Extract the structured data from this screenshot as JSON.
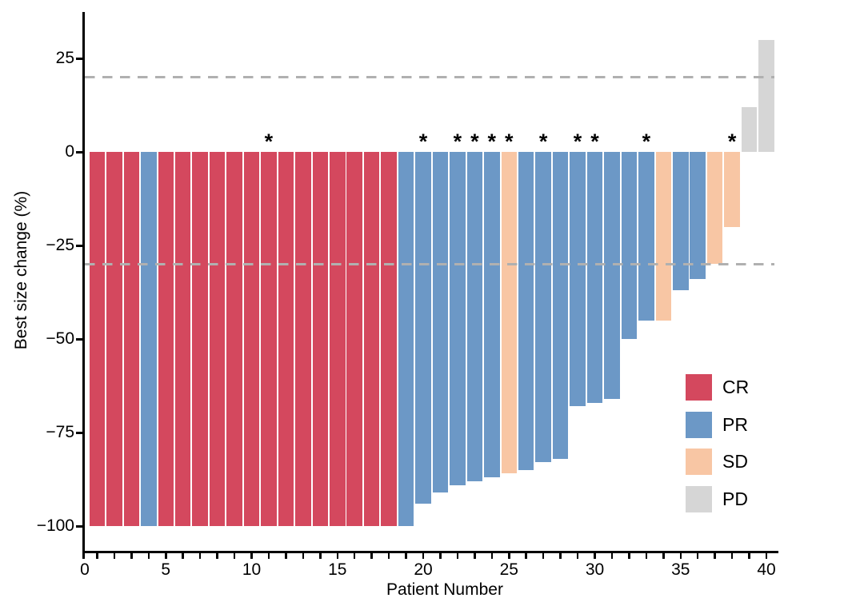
{
  "figure_title": "",
  "axes": {
    "xlabel": "Patient Number",
    "ylabel": "Best size change (%)"
  },
  "chart_data": {
    "type": "bar",
    "title": "",
    "xlabel": "Patient Number",
    "ylabel": "Best size change (%)",
    "grid": false,
    "legend_position": "lower right",
    "xlim": [
      -0.3,
      40.7
    ],
    "ylim": [
      -107,
      37
    ],
    "x_ticks_labeled": [
      0,
      5,
      10,
      15,
      20,
      25,
      30,
      35,
      40
    ],
    "x_minor_tick_every": 1,
    "y_ticks": [
      25,
      0,
      -25,
      -50,
      -75,
      -100
    ],
    "reference_lines": [
      {
        "y": 20,
        "style": "dashed",
        "color": "#b0b0b0"
      },
      {
        "y": -30,
        "style": "dashed",
        "color": "#b0b0b0"
      }
    ],
    "response_colors": {
      "CR": "#d4485e",
      "PR": "#6c98c6",
      "SD": "#f8c6a4",
      "PD": "#d6d6d6"
    },
    "legend": [
      {
        "label": "CR",
        "color": "#d4485e"
      },
      {
        "label": "PR",
        "color": "#6c98c6"
      },
      {
        "label": "SD",
        "color": "#f8c6a4"
      },
      {
        "label": "PD",
        "color": "#d6d6d6"
      }
    ],
    "marker_glyph": "*",
    "patients": [
      {
        "patient": 1,
        "change": -100,
        "response": "CR",
        "asterisk": false
      },
      {
        "patient": 2,
        "change": -100,
        "response": "CR",
        "asterisk": false
      },
      {
        "patient": 3,
        "change": -100,
        "response": "CR",
        "asterisk": false
      },
      {
        "patient": 4,
        "change": -100,
        "response": "PR",
        "asterisk": false
      },
      {
        "patient": 5,
        "change": -100,
        "response": "CR",
        "asterisk": false
      },
      {
        "patient": 6,
        "change": -100,
        "response": "CR",
        "asterisk": false
      },
      {
        "patient": 7,
        "change": -100,
        "response": "CR",
        "asterisk": false
      },
      {
        "patient": 8,
        "change": -100,
        "response": "CR",
        "asterisk": false
      },
      {
        "patient": 9,
        "change": -100,
        "response": "CR",
        "asterisk": false
      },
      {
        "patient": 10,
        "change": -100,
        "response": "CR",
        "asterisk": false
      },
      {
        "patient": 11,
        "change": -100,
        "response": "CR",
        "asterisk": true
      },
      {
        "patient": 12,
        "change": -100,
        "response": "CR",
        "asterisk": false
      },
      {
        "patient": 13,
        "change": -100,
        "response": "CR",
        "asterisk": false
      },
      {
        "patient": 14,
        "change": -100,
        "response": "CR",
        "asterisk": false
      },
      {
        "patient": 15,
        "change": -100,
        "response": "CR",
        "asterisk": false
      },
      {
        "patient": 16,
        "change": -100,
        "response": "CR",
        "asterisk": false
      },
      {
        "patient": 17,
        "change": -100,
        "response": "CR",
        "asterisk": false
      },
      {
        "patient": 18,
        "change": -100,
        "response": "CR",
        "asterisk": false
      },
      {
        "patient": 19,
        "change": -100,
        "response": "PR",
        "asterisk": false
      },
      {
        "patient": 20,
        "change": -94,
        "response": "PR",
        "asterisk": true
      },
      {
        "patient": 21,
        "change": -91,
        "response": "PR",
        "asterisk": false
      },
      {
        "patient": 22,
        "change": -89,
        "response": "PR",
        "asterisk": true
      },
      {
        "patient": 23,
        "change": -88,
        "response": "PR",
        "asterisk": true
      },
      {
        "patient": 24,
        "change": -87,
        "response": "PR",
        "asterisk": true
      },
      {
        "patient": 25,
        "change": -86,
        "response": "SD",
        "asterisk": true
      },
      {
        "patient": 26,
        "change": -85,
        "response": "PR",
        "asterisk": false
      },
      {
        "patient": 27,
        "change": -83,
        "response": "PR",
        "asterisk": true
      },
      {
        "patient": 28,
        "change": -82,
        "response": "PR",
        "asterisk": false
      },
      {
        "patient": 29,
        "change": -68,
        "response": "PR",
        "asterisk": true
      },
      {
        "patient": 30,
        "change": -67,
        "response": "PR",
        "asterisk": true
      },
      {
        "patient": 31,
        "change": -66,
        "response": "PR",
        "asterisk": false
      },
      {
        "patient": 32,
        "change": -50,
        "response": "PR",
        "asterisk": false
      },
      {
        "patient": 33,
        "change": -45,
        "response": "PR",
        "asterisk": true
      },
      {
        "patient": 34,
        "change": -45,
        "response": "SD",
        "asterisk": false
      },
      {
        "patient": 35,
        "change": -37,
        "response": "PR",
        "asterisk": false
      },
      {
        "patient": 36,
        "change": -34,
        "response": "PR",
        "asterisk": false
      },
      {
        "patient": 37,
        "change": -30,
        "response": "SD",
        "asterisk": false
      },
      {
        "patient": 38,
        "change": -20,
        "response": "SD",
        "asterisk": true
      },
      {
        "patient": 39,
        "change": 12,
        "response": "PD",
        "asterisk": false
      },
      {
        "patient": 40,
        "change": 30,
        "response": "PD",
        "asterisk": false
      }
    ]
  }
}
